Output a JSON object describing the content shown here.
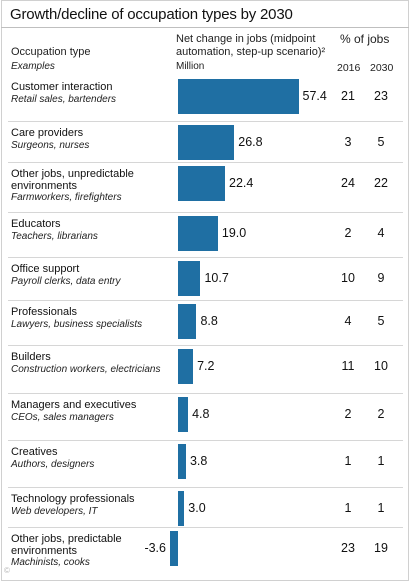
{
  "chart_data": {
    "type": "bar",
    "orientation": "horizontal",
    "title": "Growth/decline of occupation types by 2030",
    "header": {
      "occupation_label": "Occupation type",
      "examples_label": "Examples",
      "net_change_label": "Net change in jobs (midpoint automation, step-up scenario)²",
      "unit_label": "Million",
      "pct_label": "% of jobs",
      "year_2016": "2016",
      "year_2030": "2030"
    },
    "rows": [
      {
        "category": "Customer interaction",
        "examples": "Retail sales, bartenders",
        "value": 57.4,
        "value_label": "57.4",
        "pct_2016": "21",
        "pct_2030": "23"
      },
      {
        "category": "Care providers",
        "examples": "Surgeons, nurses",
        "value": 26.8,
        "value_label": "26.8",
        "pct_2016": "3",
        "pct_2030": "5"
      },
      {
        "category": "Other jobs, unpredictable environments",
        "examples": "Farmworkers, firefighters",
        "value": 22.4,
        "value_label": "22.4",
        "pct_2016": "24",
        "pct_2030": "22"
      },
      {
        "category": "Educators",
        "examples": "Teachers, librarians",
        "value": 19.0,
        "value_label": "19.0",
        "pct_2016": "2",
        "pct_2030": "4"
      },
      {
        "category": "Office support",
        "examples": "Payroll clerks, data entry",
        "value": 10.7,
        "value_label": "10.7",
        "pct_2016": "10",
        "pct_2030": "9"
      },
      {
        "category": "Professionals",
        "examples": "Lawyers, business specialists",
        "value": 8.8,
        "value_label": "8.8",
        "pct_2016": "4",
        "pct_2030": "5"
      },
      {
        "category": "Builders",
        "examples": "Construction workers, electricians",
        "value": 7.2,
        "value_label": "7.2",
        "pct_2016": "11",
        "pct_2030": "10"
      },
      {
        "category": "Managers and executives",
        "examples": "CEOs, sales managers",
        "value": 4.8,
        "value_label": "4.8",
        "pct_2016": "2",
        "pct_2030": "2"
      },
      {
        "category": "Creatives",
        "examples": "Authors, designers",
        "value": 3.8,
        "value_label": "3.8",
        "pct_2016": "1",
        "pct_2030": "1"
      },
      {
        "category": "Technology professionals",
        "examples": "Web developers, IT",
        "value": 3.0,
        "value_label": "3.0",
        "pct_2016": "1",
        "pct_2030": "1"
      },
      {
        "category": "Other jobs, predictable environments",
        "examples": "Machinists, cooks",
        "value": -3.6,
        "value_label": "-3.6",
        "pct_2016": "23",
        "pct_2030": "19"
      }
    ],
    "bar_color": "#1f6fa3",
    "grid": false,
    "legend": "none"
  }
}
